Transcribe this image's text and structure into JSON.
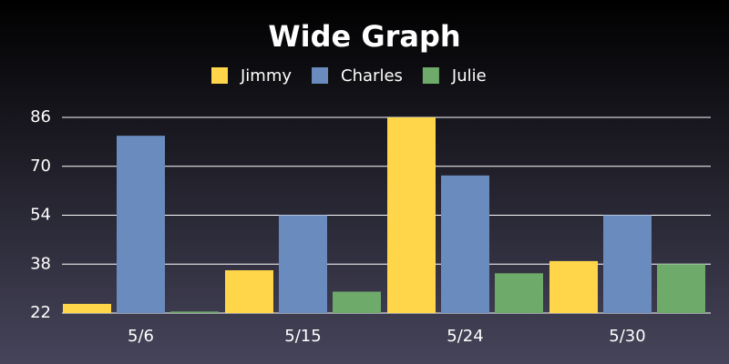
{
  "chart_data": {
    "type": "bar",
    "title": "Wide Graph",
    "categories": [
      "5/6",
      "5/15",
      "5/24",
      "5/30"
    ],
    "series": [
      {
        "name": "Jimmy",
        "color": "#ffd54a",
        "values": [
          25,
          36,
          86,
          39
        ]
      },
      {
        "name": "Charles",
        "color": "#6a8bbd",
        "values": [
          80,
          54,
          67,
          54
        ]
      },
      {
        "name": "Julie",
        "color": "#6eaa6a",
        "values": [
          22.5,
          29,
          35,
          38
        ]
      }
    ],
    "ylim": [
      22,
      86
    ],
    "yticks": [
      22,
      38,
      54,
      70,
      86
    ],
    "grid": true,
    "legend": "top"
  }
}
